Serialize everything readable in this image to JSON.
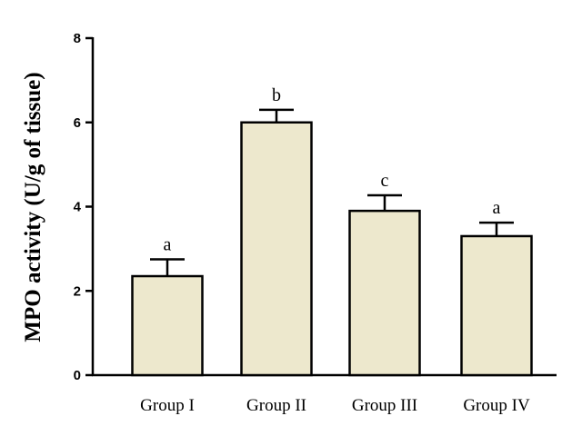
{
  "chart_data": {
    "type": "bar",
    "title": "",
    "xlabel": "",
    "ylabel": "MPO activity (U/g of tissue)",
    "ylim": [
      0,
      8
    ],
    "yticks": [
      0,
      2,
      4,
      6,
      8
    ],
    "grid": false,
    "categories": [
      "Group I",
      "Group II",
      "Group III",
      "Group IV"
    ],
    "values": [
      2.35,
      6.0,
      3.9,
      3.3
    ],
    "error_upper": [
      0.4,
      0.3,
      0.37,
      0.32
    ],
    "significance_labels": [
      "a",
      "b",
      "c",
      "a"
    ],
    "bar_color": "#ede8cd",
    "edge_color": "#000000"
  }
}
